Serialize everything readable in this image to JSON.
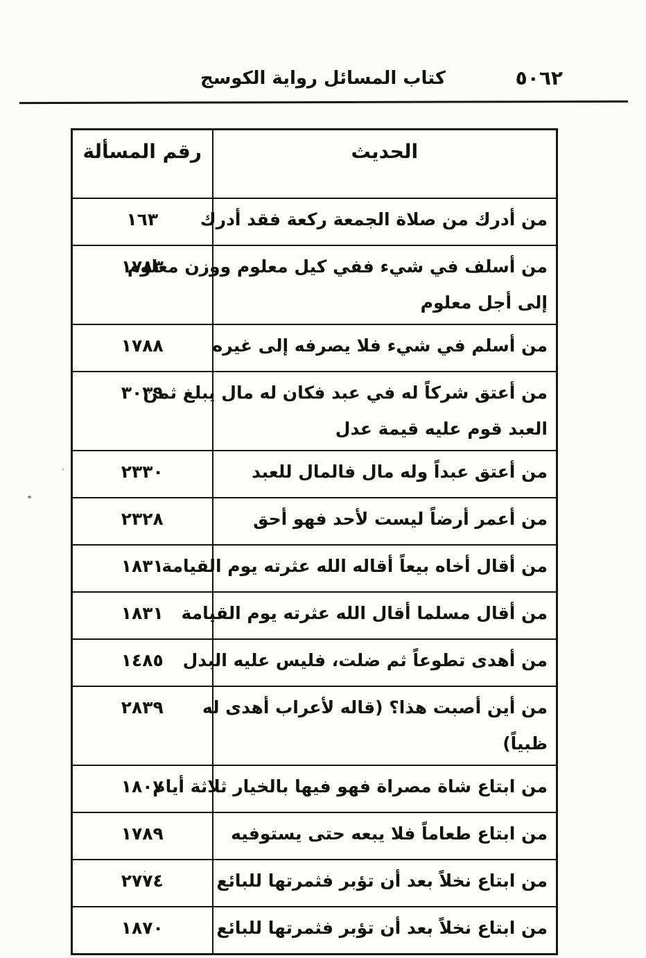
{
  "header": {
    "title": "كتاب المسائل رواية الكوسج",
    "page_number": "٥٠٦٢"
  },
  "table": {
    "columns": {
      "hadith": "الحديث",
      "number": "رقم المسألة"
    },
    "rows": [
      {
        "number": "١٦٣",
        "lines": [
          "من أدرك من صلاة الجمعة ركعة فقد أدرك"
        ]
      },
      {
        "number": "١٧٨٣",
        "lines": [
          "من أسلف في شيء ففي كيل معلوم ووزن معلوم",
          "إلى أجل معلوم"
        ]
      },
      {
        "number": "١٧٨٨",
        "lines": [
          "من أسلم في شيء فلا يصرفه إلى غيره"
        ]
      },
      {
        "number": "٣٠٣٩",
        "lines": [
          "من أعتق شركاً له في عبد فكان له مال يبلغ ثمن",
          "العبد قوم عليه قيمة عدل"
        ]
      },
      {
        "number": "٢٣٣٠",
        "lines": [
          "من أعتق عبداً وله مال فالمال للعبد"
        ]
      },
      {
        "number": "٢٣٢٨",
        "lines": [
          "من أعمر أرضاً ليست لأحد فهو أحق"
        ]
      },
      {
        "number": "١٨٣١",
        "lines": [
          "من أقال أخاه بيعاً أقاله الله عثرته يوم القيامة"
        ]
      },
      {
        "number": "١٨٣١",
        "lines": [
          "من أقال مسلما أقال الله عثرته يوم القيامة"
        ]
      },
      {
        "number": "١٤٨٥",
        "lines": [
          "من أهدى تطوعاً ثم ضلت، فليس عليه البدل"
        ]
      },
      {
        "number": "٢٨٣٩",
        "lines": [
          "من أين أصبت هذا؟ (قاله لأعراب أهدى له",
          "ظبياً)"
        ]
      },
      {
        "number": "١٨٠٧",
        "lines": [
          "من ابتاع شاة مصراة فهو فيها بالخيار ثلاثة أيام"
        ]
      },
      {
        "number": "١٧٨٩",
        "lines": [
          "من ابتاع طعاماً فلا يبعه حتى يستوفيه"
        ]
      },
      {
        "number": "٢٧٧٤",
        "lines": [
          "من ابتاع نخلاً بعد أن تؤبر فثمرتها للبائع"
        ]
      },
      {
        "number": "١٨٧٠",
        "lines": [
          "من ابتاع نخلاً بعد أن تؤبر فثمرتها للبائع"
        ]
      }
    ]
  }
}
